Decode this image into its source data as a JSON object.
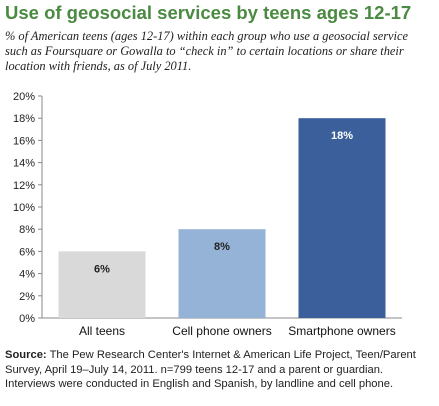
{
  "title": "Use of geosocial services by teens ages 12-17",
  "subtitle": "% of American teens (ages 12-17) within each group who use a geosocial service such as Foursquare or Gowalla to “check in” to certain locations or share their location with friends, as of July 2011.",
  "source_label": "Source:",
  "source_text": "The Pew Research Center's Internet & American Life Project, Teen/Parent Survey, April 19–July 14, 2011. n=799 teens 12-17 and a parent or guardian. Interviews were conducted in English and Spanish, by landline and cell phone.",
  "chart_data": {
    "type": "bar",
    "categories": [
      "All teens",
      "Cell phone owners",
      "Smartphone owners"
    ],
    "values": [
      6,
      8,
      18
    ],
    "data_labels": [
      "6%",
      "8%",
      "18%"
    ],
    "yticks": [
      "0%",
      "2%",
      "4%",
      "6%",
      "8%",
      "10%",
      "12%",
      "14%",
      "16%",
      "18%",
      "20%"
    ],
    "ylim": [
      0,
      20
    ],
    "grid": false,
    "legend": "none",
    "bar_colors": [
      "#d9d9d9",
      "#95b3d7",
      "#3a5f9b"
    ],
    "label_colors": [
      "#222222",
      "#222222",
      "#ffffff"
    ],
    "axis_color": "#888888"
  }
}
